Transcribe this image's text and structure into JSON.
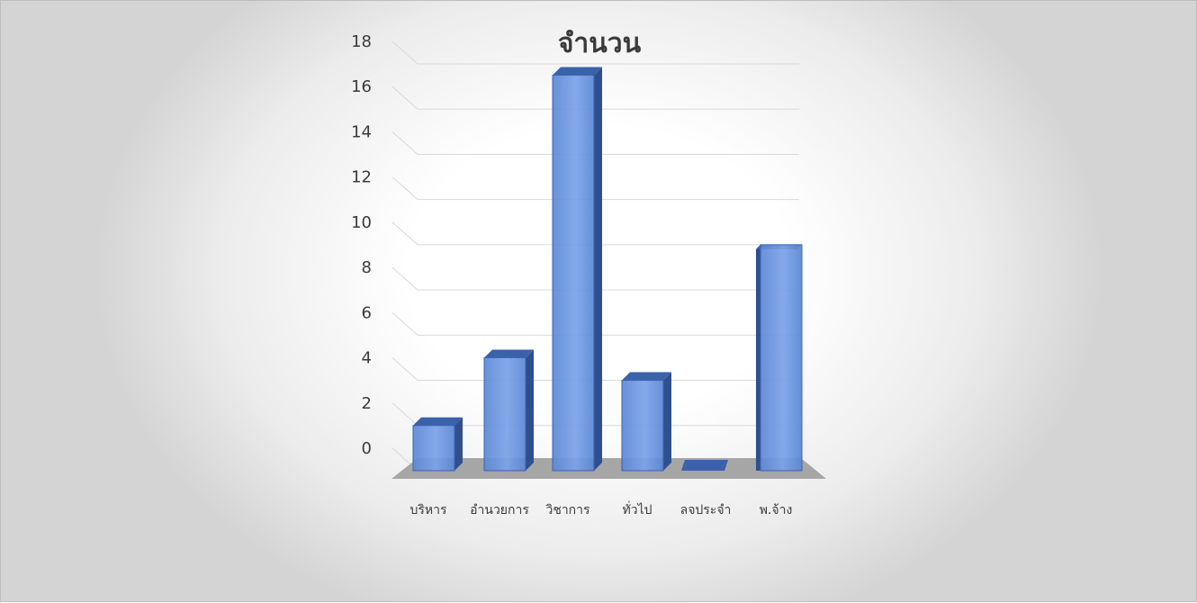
{
  "chart_data": {
    "type": "bar",
    "title": "จำนวน",
    "categories": [
      "บริหาร",
      "อำนวยการ",
      "วิชาการ",
      "ทั่วไป",
      "ลจประจำ",
      "พ.จ้าง"
    ],
    "values": [
      2,
      5,
      17.5,
      4,
      0,
      10
    ],
    "ylim": [
      0,
      18
    ],
    "yticks": [
      0,
      2,
      4,
      6,
      8,
      10,
      12,
      14,
      16,
      18
    ],
    "grid": true,
    "legend": "none",
    "style": "3d-column"
  },
  "colors": {
    "bar_front": "#4472c4",
    "bar_side": "#2f4f8f",
    "bar_top": "#3a62aa",
    "floor": "#a6a6a6",
    "grid": "#d9d9d9"
  }
}
